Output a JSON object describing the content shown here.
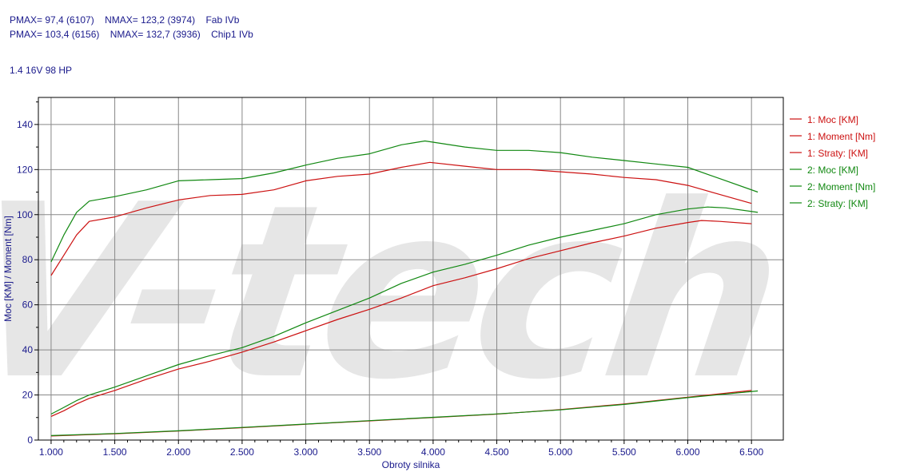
{
  "header": {
    "line1": "PMAX= 97,4 (6107)    NMAX= 123,2 (3974)    Fab IVb",
    "line2": "PMAX= 103,4 (6156)    NMAX= 132,7 (3936)    Chip1 IVb",
    "engine": "1.4 16V 98 HP"
  },
  "colors": {
    "series1": "#cc1111",
    "series2": "#118811",
    "axis": "#1a1a8c",
    "watermark": "#e6e6e6"
  },
  "watermark_text": "V-tech",
  "chart_data": {
    "type": "line",
    "xlabel": "Obroty silnika",
    "ylabel": "Moc [KM] / Moment [Nm]",
    "xlim": [
      900,
      6750
    ],
    "ylim": [
      0,
      152
    ],
    "x_ticks": [
      1000,
      1500,
      2000,
      2500,
      3000,
      3500,
      4000,
      4500,
      5000,
      5500,
      6000,
      6500
    ],
    "x_tick_labels": [
      "1.000",
      "1.500",
      "2.000",
      "2.500",
      "3.000",
      "3.500",
      "4.000",
      "4.500",
      "5.000",
      "5.500",
      "6.000",
      "6.500"
    ],
    "y_ticks": [
      0,
      20,
      40,
      60,
      80,
      100,
      120,
      140
    ],
    "y_tick_labels": [
      "0",
      "20",
      "40",
      "60",
      "80",
      "100",
      "120",
      "140"
    ],
    "grid": true,
    "legend_position": "right",
    "series": [
      {
        "name": "1: Moc [KM]",
        "color": "#cc1111",
        "x": [
          1000,
          1100,
          1200,
          1300,
          1500,
          1750,
          2000,
          2250,
          2500,
          2750,
          3000,
          3250,
          3500,
          3750,
          4000,
          4250,
          4500,
          4750,
          5000,
          5250,
          5500,
          5750,
          6000,
          6107,
          6250,
          6500
        ],
        "y": [
          10.5,
          13,
          16,
          18.5,
          22,
          27,
          31.5,
          35,
          39,
          43.5,
          48.5,
          53.5,
          58,
          63,
          68.5,
          72,
          76,
          80.5,
          84,
          87.5,
          90.5,
          94,
          96.5,
          97.4,
          97,
          96
        ]
      },
      {
        "name": "1: Moment [Nm]",
        "color": "#cc1111",
        "x": [
          1000,
          1100,
          1200,
          1300,
          1500,
          1750,
          2000,
          2250,
          2500,
          2750,
          3000,
          3250,
          3500,
          3750,
          3974,
          4250,
          4500,
          4750,
          5000,
          5250,
          5500,
          5750,
          6000,
          6250,
          6500
        ],
        "y": [
          73,
          82,
          91,
          97,
          99,
          103,
          106.5,
          108.5,
          109,
          111,
          115,
          117,
          118,
          121,
          123.2,
          121.5,
          120,
          120,
          119,
          118,
          116.5,
          115.5,
          113,
          109,
          105
        ]
      },
      {
        "name": "1: Straty: [KM]",
        "color": "#cc1111",
        "x": [
          1000,
          1500,
          2000,
          2500,
          3000,
          3500,
          4000,
          4500,
          5000,
          5500,
          6000,
          6500
        ],
        "y": [
          1.8,
          2.8,
          4,
          5.5,
          7,
          8.5,
          10,
          11.5,
          13.5,
          16,
          19,
          22
        ]
      },
      {
        "name": "2: Moc [KM]",
        "color": "#118811",
        "x": [
          1000,
          1100,
          1200,
          1300,
          1500,
          1750,
          2000,
          2250,
          2500,
          2750,
          3000,
          3250,
          3500,
          3750,
          4000,
          4250,
          4500,
          4750,
          5000,
          5250,
          5500,
          5750,
          6000,
          6156,
          6300,
          6550
        ],
        "y": [
          11.5,
          14.5,
          17.5,
          20,
          23.5,
          28.5,
          33.5,
          37.5,
          41,
          46,
          52,
          57.5,
          63,
          69.5,
          74.5,
          78,
          82,
          86.5,
          90,
          93,
          96,
          100,
          102.5,
          103.4,
          103,
          101
        ]
      },
      {
        "name": "2: Moment [Nm]",
        "color": "#118811",
        "x": [
          1000,
          1100,
          1200,
          1300,
          1500,
          1750,
          2000,
          2250,
          2500,
          2750,
          3000,
          3250,
          3500,
          3750,
          3936,
          4250,
          4500,
          4750,
          5000,
          5250,
          5500,
          5750,
          6000,
          6250,
          6550
        ],
        "y": [
          79,
          91,
          101,
          106,
          108,
          111,
          115,
          115.5,
          116,
          118.5,
          122,
          125,
          127,
          131,
          132.7,
          130,
          128.5,
          128.5,
          127.5,
          125.5,
          124,
          122.5,
          121,
          116,
          110
        ]
      },
      {
        "name": "2: Straty: [KM]",
        "color": "#118811",
        "x": [
          1000,
          1500,
          2000,
          2500,
          3000,
          3500,
          4000,
          4500,
          5000,
          5500,
          6000,
          6550
        ],
        "y": [
          2,
          2.9,
          4.1,
          5.6,
          7.1,
          8.6,
          10.1,
          11.6,
          13.4,
          15.8,
          18.8,
          21.8
        ]
      }
    ]
  }
}
